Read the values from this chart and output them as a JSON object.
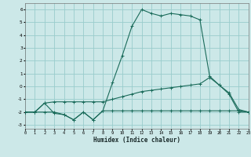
{
  "xlabel": "Humidex (Indice chaleur)",
  "bg_color": "#cce8e8",
  "grid_color": "#99cccc",
  "line_color": "#1a6b5a",
  "xlim": [
    0,
    23
  ],
  "ylim": [
    -3.3,
    6.5
  ],
  "xticks": [
    0,
    1,
    2,
    3,
    4,
    5,
    6,
    7,
    8,
    9,
    10,
    11,
    12,
    13,
    14,
    15,
    16,
    17,
    18,
    19,
    20,
    21,
    22,
    23
  ],
  "yticks": [
    -3,
    -2,
    -1,
    0,
    1,
    2,
    3,
    4,
    5,
    6
  ],
  "s1_x": [
    0,
    1,
    2,
    3,
    4,
    5,
    6,
    7,
    8,
    9,
    10,
    11,
    12,
    13,
    14,
    15,
    16,
    17,
    18,
    19,
    20,
    21,
    22,
    23
  ],
  "s1_y": [
    -2.0,
    -2.0,
    -2.0,
    -2.0,
    -2.2,
    -2.6,
    -2.0,
    -2.6,
    -1.9,
    -1.9,
    -1.9,
    -1.9,
    -1.9,
    -1.9,
    -1.9,
    -1.9,
    -1.9,
    -1.9,
    -1.9,
    -1.9,
    -1.9,
    -1.9,
    -1.9,
    -2.0
  ],
  "s2_x": [
    0,
    1,
    2,
    3,
    4,
    5,
    6,
    7,
    8,
    9,
    10,
    11,
    12,
    13,
    14,
    15,
    16,
    17,
    18,
    19,
    20,
    21,
    22,
    23
  ],
  "s2_y": [
    -2.0,
    -2.0,
    -1.3,
    -1.2,
    -1.2,
    -1.2,
    -1.2,
    -1.2,
    -1.2,
    -1.0,
    -0.8,
    -0.6,
    -0.4,
    -0.3,
    -0.2,
    -0.1,
    0.0,
    0.1,
    0.2,
    0.7,
    0.1,
    -0.5,
    -1.8,
    -2.0
  ],
  "s3_x": [
    0,
    1,
    2,
    3,
    4,
    5,
    6,
    7,
    8,
    9,
    10,
    11,
    12,
    13,
    14,
    15,
    16,
    17,
    18,
    19,
    20,
    21,
    22,
    23
  ],
  "s3_y": [
    -2.0,
    -2.0,
    -1.3,
    -2.1,
    -2.2,
    -2.6,
    -2.0,
    -2.6,
    -1.9,
    0.3,
    2.4,
    4.7,
    6.0,
    5.7,
    5.5,
    5.7,
    5.6,
    5.5,
    5.2,
    0.8,
    0.1,
    -0.6,
    -2.0,
    -2.0
  ]
}
